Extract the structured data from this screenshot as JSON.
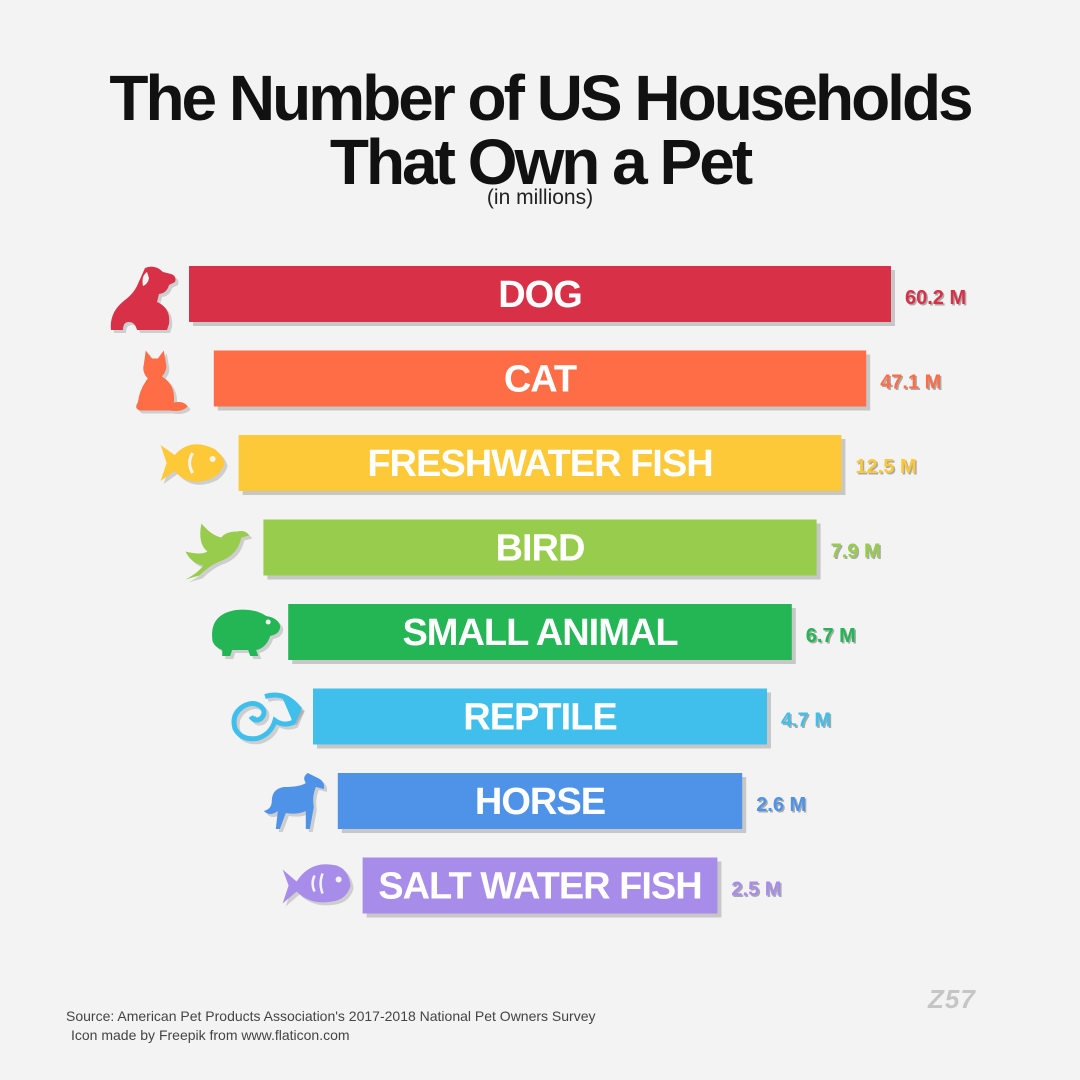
{
  "title_line1": "The Number of US Households",
  "title_line2": "That Own a Pet",
  "subtitle": "(in millions)",
  "source_line1": "Source: American Pet Products Association's 2017-2018 National Pet Owners Survey",
  "source_line2": "Icon made by Freepik from www.flaticon.com",
  "brand": "Z57",
  "chart_data": {
    "type": "bar",
    "orientation": "horizontal",
    "title": "The Number of US Households That Own a Pet",
    "subtitle": "(in millions)",
    "unit": "M",
    "categories": [
      "DOG",
      "CAT",
      "FRESHWATER FISH",
      "BIRD",
      "SMALL ANIMAL",
      "REPTILE",
      "HORSE",
      "SALT WATER FISH"
    ],
    "values": [
      60.2,
      47.1,
      12.5,
      7.9,
      6.7,
      4.7,
      2.6,
      2.5
    ],
    "value_labels": [
      "60.2 M",
      "47.1 M",
      "12.5 M",
      "7.9 M",
      "6.7 M",
      "4.7 M",
      "2.6 M",
      "2.5 M"
    ],
    "colors": [
      "#d83147",
      "#fe6d45",
      "#fec938",
      "#98cc4c",
      "#24b554",
      "#40bfec",
      "#4f93e8",
      "#a88ce9"
    ],
    "icons": [
      "dog-icon",
      "cat-icon",
      "fish-icon",
      "bird-icon",
      "hamster-icon",
      "chameleon-icon",
      "horse-icon",
      "saltwater-fish-icon"
    ]
  }
}
